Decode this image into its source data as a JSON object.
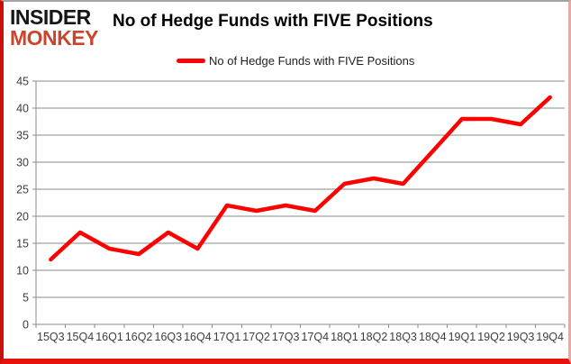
{
  "logo": {
    "line1": "INSIDER",
    "line2": "MONKEY"
  },
  "header": {
    "title": "No of Hedge Funds with FIVE Positions"
  },
  "legend": {
    "label": "No of Hedge Funds with FIVE Positions"
  },
  "chart_data": {
    "type": "line",
    "title": "No of Hedge Funds with FIVE Positions",
    "categories": [
      "15Q3",
      "15Q4",
      "16Q1",
      "16Q2",
      "16Q3",
      "16Q4",
      "17Q1",
      "17Q2",
      "17Q3",
      "17Q4",
      "18Q1",
      "18Q2",
      "18Q3",
      "18Q4",
      "19Q1",
      "19Q2",
      "19Q3",
      "19Q4"
    ],
    "series": [
      {
        "name": "No of Hedge Funds with FIVE Positions",
        "color": "#fe0000",
        "values": [
          12,
          17,
          14,
          13,
          17,
          14,
          22,
          21,
          22,
          21,
          26,
          27,
          26,
          32,
          38,
          38,
          37,
          42
        ]
      }
    ],
    "xlabel": "",
    "ylabel": "",
    "ylim": [
      0,
      45
    ],
    "ytick_step": 5,
    "grid": true,
    "legend_position": "top-center"
  },
  "colors": {
    "line_red": "#fe0000",
    "logo_red": "#c9452c",
    "grid_gray": "#8a8a8a",
    "axis_text": "#3d3d3d",
    "border_left": "#cb100b",
    "border_bottom": "#e8110c",
    "border_right": "#f2a79e",
    "border_top": "#a3a3a3"
  }
}
